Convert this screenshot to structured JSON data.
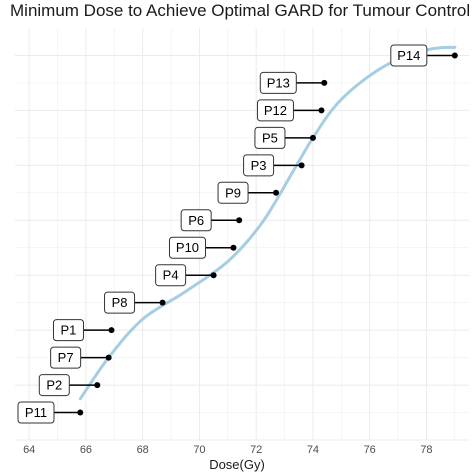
{
  "chart_data": {
    "type": "scatter",
    "title": "Minimum Dose to Achieve Optimal GARD for Tumour Control",
    "xlabel": "Dose(Gy)",
    "ylabel": "",
    "xlim": [
      63.5,
      79.5
    ],
    "xticks": [
      64,
      66,
      68,
      70,
      72,
      74,
      76,
      78
    ],
    "grid": true,
    "legend": "none",
    "colors": {
      "curve": "#a6cee3",
      "point": "#000000",
      "grid": "#ebebeb",
      "label_border": "#333333"
    },
    "points": [
      {
        "label": "P11",
        "x": 65.8,
        "y": 1
      },
      {
        "label": "P2",
        "x": 66.4,
        "y": 2
      },
      {
        "label": "P7",
        "x": 66.8,
        "y": 3
      },
      {
        "label": "P1",
        "x": 66.9,
        "y": 4
      },
      {
        "label": "P8",
        "x": 68.7,
        "y": 5
      },
      {
        "label": "P4",
        "x": 70.5,
        "y": 6
      },
      {
        "label": "P10",
        "x": 71.2,
        "y": 7
      },
      {
        "label": "P6",
        "x": 71.4,
        "y": 8
      },
      {
        "label": "P9",
        "x": 72.7,
        "y": 9
      },
      {
        "label": "P3",
        "x": 73.6,
        "y": 10
      },
      {
        "label": "P5",
        "x": 74.0,
        "y": 11
      },
      {
        "label": "P12",
        "x": 74.3,
        "y": 12
      },
      {
        "label": "P13",
        "x": 74.4,
        "y": 13
      },
      {
        "label": "P14",
        "x": 79.0,
        "y": 14
      }
    ],
    "curve": [
      {
        "x": 65.8,
        "y": 1.5
      },
      {
        "x": 66.8,
        "y": 3.0
      },
      {
        "x": 68.0,
        "y": 4.4
      },
      {
        "x": 69.5,
        "y": 5.4
      },
      {
        "x": 71.0,
        "y": 6.5
      },
      {
        "x": 72.2,
        "y": 7.9
      },
      {
        "x": 73.2,
        "y": 9.6
      },
      {
        "x": 74.0,
        "y": 11.0
      },
      {
        "x": 75.0,
        "y": 12.4
      },
      {
        "x": 76.5,
        "y": 13.6
      },
      {
        "x": 78.0,
        "y": 14.2
      },
      {
        "x": 79.0,
        "y": 14.3
      }
    ]
  }
}
